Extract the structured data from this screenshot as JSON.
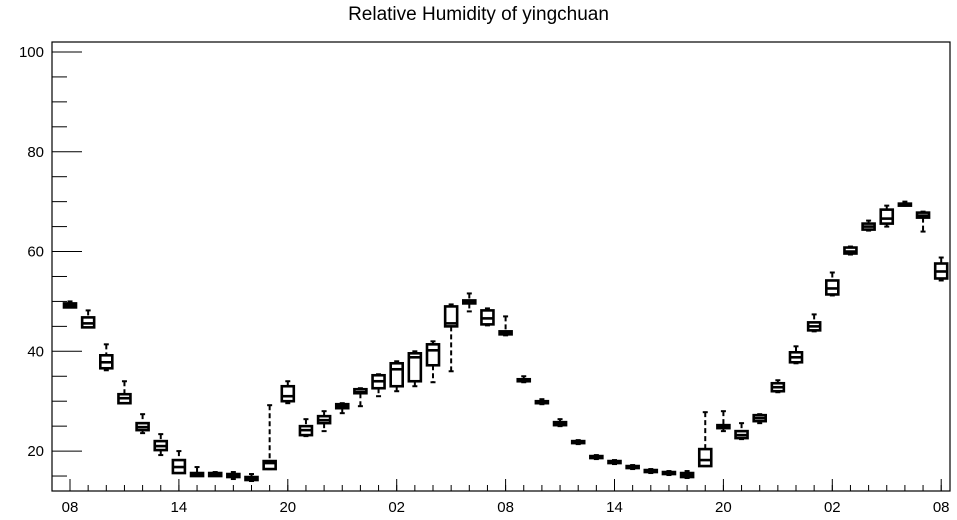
{
  "chart_data": {
    "type": "box",
    "title": "Relative Humidity of yingchuan",
    "xlabel": "",
    "ylabel": "",
    "ylim": [
      12,
      102
    ],
    "yticks": [
      20,
      40,
      60,
      80,
      100
    ],
    "x_tick_labels": [
      {
        "i": 0,
        "label": "08"
      },
      {
        "i": 6,
        "label": "14"
      },
      {
        "i": 12,
        "label": "20"
      },
      {
        "i": 18,
        "label": "02"
      },
      {
        "i": 24,
        "label": "08"
      },
      {
        "i": 30,
        "label": "14"
      },
      {
        "i": 36,
        "label": "20"
      },
      {
        "i": 42,
        "label": "02"
      },
      {
        "i": 48,
        "label": "08"
      }
    ],
    "boxes": [
      {
        "i": 0,
        "min": 48.8,
        "q1": 48.8,
        "median": 49.2,
        "q3": 49.6,
        "max": 50.0
      },
      {
        "i": 1,
        "min": 44.8,
        "q1": 44.8,
        "median": 45.6,
        "q3": 46.8,
        "max": 48.2
      },
      {
        "i": 2,
        "min": 36.2,
        "q1": 36.6,
        "median": 37.8,
        "q3": 39.2,
        "max": 41.4
      },
      {
        "i": 3,
        "min": 29.6,
        "q1": 29.6,
        "median": 30.6,
        "q3": 31.4,
        "max": 34.0
      },
      {
        "i": 4,
        "min": 23.6,
        "q1": 24.2,
        "median": 24.8,
        "q3": 25.6,
        "max": 27.4
      },
      {
        "i": 5,
        "min": 19.2,
        "q1": 20.2,
        "median": 21.0,
        "q3": 22.0,
        "max": 23.4
      },
      {
        "i": 6,
        "min": 15.6,
        "q1": 15.6,
        "median": 16.8,
        "q3": 18.2,
        "max": 20.0
      },
      {
        "i": 7,
        "min": 15.0,
        "q1": 15.0,
        "median": 15.4,
        "q3": 15.6,
        "max": 16.8
      },
      {
        "i": 8,
        "min": 15.0,
        "q1": 15.0,
        "median": 15.4,
        "q3": 15.6,
        "max": 15.8
      },
      {
        "i": 9,
        "min": 14.4,
        "q1": 14.8,
        "median": 15.0,
        "q3": 15.4,
        "max": 15.8
      },
      {
        "i": 10,
        "min": 14.0,
        "q1": 14.2,
        "median": 14.6,
        "q3": 14.8,
        "max": 15.4
      },
      {
        "i": 11,
        "min": 16.4,
        "q1": 16.4,
        "median": 17.6,
        "q3": 18.0,
        "max": 29.2
      },
      {
        "i": 12,
        "min": 29.6,
        "q1": 30.0,
        "median": 31.0,
        "q3": 33.0,
        "max": 34.0
      },
      {
        "i": 13,
        "min": 23.0,
        "q1": 23.2,
        "median": 24.2,
        "q3": 25.0,
        "max": 26.4
      },
      {
        "i": 14,
        "min": 24.0,
        "q1": 25.6,
        "median": 26.2,
        "q3": 27.0,
        "max": 28.0
      },
      {
        "i": 15,
        "min": 27.6,
        "q1": 28.6,
        "median": 29.0,
        "q3": 29.4,
        "max": 29.6
      },
      {
        "i": 16,
        "min": 29.0,
        "q1": 31.6,
        "median": 31.8,
        "q3": 32.4,
        "max": 32.6
      },
      {
        "i": 17,
        "min": 31.0,
        "q1": 32.6,
        "median": 34.0,
        "q3": 35.2,
        "max": 35.4
      },
      {
        "i": 18,
        "min": 32.0,
        "q1": 33.0,
        "median": 36.4,
        "q3": 37.6,
        "max": 38.0
      },
      {
        "i": 19,
        "min": 33.0,
        "q1": 34.0,
        "median": 38.8,
        "q3": 39.6,
        "max": 40.0
      },
      {
        "i": 20,
        "min": 33.8,
        "q1": 37.2,
        "median": 40.2,
        "q3": 41.4,
        "max": 42.0
      },
      {
        "i": 21,
        "min": 36.0,
        "q1": 45.0,
        "median": 45.6,
        "q3": 49.0,
        "max": 49.4
      },
      {
        "i": 22,
        "min": 48.0,
        "q1": 49.6,
        "median": 50.0,
        "q3": 50.2,
        "max": 51.6
      },
      {
        "i": 23,
        "min": 45.2,
        "q1": 45.4,
        "median": 46.6,
        "q3": 48.2,
        "max": 48.6
      },
      {
        "i": 24,
        "min": 43.2,
        "q1": 43.4,
        "median": 43.6,
        "q3": 44.0,
        "max": 47.0
      },
      {
        "i": 25,
        "min": 33.8,
        "q1": 34.0,
        "median": 34.2,
        "q3": 34.4,
        "max": 35.0
      },
      {
        "i": 26,
        "min": 29.4,
        "q1": 29.6,
        "median": 29.8,
        "q3": 30.0,
        "max": 30.4
      },
      {
        "i": 27,
        "min": 25.0,
        "q1": 25.2,
        "median": 25.6,
        "q3": 25.8,
        "max": 26.4
      },
      {
        "i": 28,
        "min": 21.4,
        "q1": 21.6,
        "median": 21.8,
        "q3": 22.0,
        "max": 22.2
      },
      {
        "i": 29,
        "min": 18.4,
        "q1": 18.6,
        "median": 18.8,
        "q3": 19.0,
        "max": 19.2
      },
      {
        "i": 30,
        "min": 17.4,
        "q1": 17.6,
        "median": 17.8,
        "q3": 18.0,
        "max": 18.2
      },
      {
        "i": 31,
        "min": 16.4,
        "q1": 16.6,
        "median": 16.8,
        "q3": 17.0,
        "max": 17.2
      },
      {
        "i": 32,
        "min": 15.6,
        "q1": 15.8,
        "median": 16.0,
        "q3": 16.2,
        "max": 16.4
      },
      {
        "i": 33,
        "min": 15.2,
        "q1": 15.4,
        "median": 15.6,
        "q3": 15.8,
        "max": 16.0
      },
      {
        "i": 34,
        "min": 14.6,
        "q1": 14.8,
        "median": 15.2,
        "q3": 15.6,
        "max": 16.0
      },
      {
        "i": 35,
        "min": 17.0,
        "q1": 17.0,
        "median": 18.2,
        "q3": 20.4,
        "max": 27.8
      },
      {
        "i": 36,
        "min": 24.0,
        "q1": 24.6,
        "median": 25.0,
        "q3": 25.2,
        "max": 28.0
      },
      {
        "i": 37,
        "min": 22.4,
        "q1": 22.6,
        "median": 23.2,
        "q3": 24.0,
        "max": 25.6
      },
      {
        "i": 38,
        "min": 25.6,
        "q1": 26.0,
        "median": 26.6,
        "q3": 27.2,
        "max": 27.4
      },
      {
        "i": 39,
        "min": 31.8,
        "q1": 32.0,
        "median": 32.8,
        "q3": 33.6,
        "max": 34.2
      },
      {
        "i": 40,
        "min": 37.6,
        "q1": 37.8,
        "median": 38.8,
        "q3": 39.8,
        "max": 41.0
      },
      {
        "i": 41,
        "min": 44.0,
        "q1": 44.2,
        "median": 45.0,
        "q3": 45.8,
        "max": 47.4
      },
      {
        "i": 42,
        "min": 51.2,
        "q1": 51.4,
        "median": 52.6,
        "q3": 54.2,
        "max": 55.8
      },
      {
        "i": 43,
        "min": 59.4,
        "q1": 59.6,
        "median": 60.0,
        "q3": 60.8,
        "max": 61.0
      },
      {
        "i": 44,
        "min": 64.2,
        "q1": 64.4,
        "median": 65.0,
        "q3": 65.6,
        "max": 66.2
      },
      {
        "i": 45,
        "min": 65.0,
        "q1": 65.6,
        "median": 66.6,
        "q3": 68.4,
        "max": 69.2
      },
      {
        "i": 46,
        "min": 69.2,
        "q1": 69.2,
        "median": 69.4,
        "q3": 69.6,
        "max": 70.0
      },
      {
        "i": 47,
        "min": 64.0,
        "q1": 66.8,
        "median": 67.2,
        "q3": 67.8,
        "max": 68.0
      },
      {
        "i": 48,
        "min": 54.2,
        "q1": 54.6,
        "median": 56.0,
        "q3": 57.6,
        "max": 58.8
      }
    ]
  }
}
